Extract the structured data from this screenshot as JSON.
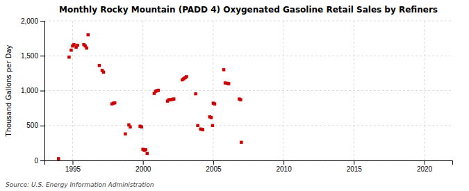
{
  "chart_data": {
    "type": "scatter",
    "title": "Monthly Rocky Mountain (PADD 4) Oxygenated Gasoline Retail Sales by Refiners",
    "y_label": "Thousand Gallons per Day",
    "annotations": [
      "Source: U.S. Energy Information Administration"
    ],
    "color": "#cc0000",
    "marker": "square",
    "grid": true,
    "xlim": [
      1993.0,
      2022.0
    ],
    "ylim": [
      0,
      2000
    ],
    "xticks": [
      1995,
      2000,
      2005,
      2010,
      2015,
      2020
    ],
    "yticks": [
      0,
      500,
      {
        "value": 1000,
        "label": "1,000"
      },
      {
        "value": 1500,
        "label": "1,500"
      },
      {
        "value": 2000,
        "label": "2,000"
      }
    ],
    "x": [
      1994.0,
      1994.75,
      1994.9,
      1995.0,
      1995.1,
      1995.25,
      1995.35,
      1995.8,
      1995.9,
      1996.0,
      1996.1,
      1996.9,
      1997.1,
      1997.2,
      1997.8,
      1997.9,
      1998.0,
      1998.75,
      1999.0,
      1999.1,
      1999.8,
      1999.9,
      2000.0,
      2000.1,
      2000.2,
      2000.3,
      2000.8,
      2000.9,
      2001.0,
      2001.1,
      2001.75,
      2001.85,
      2002.0,
      2002.1,
      2002.2,
      2002.8,
      2002.9,
      2003.0,
      2003.1,
      2003.75,
      2003.9,
      2004.1,
      2004.2,
      2004.25,
      2004.75,
      2004.85,
      2004.95,
      2005.0,
      2005.1,
      2005.75,
      2005.85,
      2006.0,
      2006.1,
      2006.85,
      2006.95,
      2007.0
    ],
    "values": [
      25,
      1480,
      1580,
      1640,
      1660,
      1620,
      1650,
      1660,
      1640,
      1610,
      1800,
      1360,
      1290,
      1265,
      810,
      820,
      825,
      380,
      510,
      480,
      490,
      480,
      160,
      145,
      155,
      100,
      960,
      990,
      1000,
      1005,
      850,
      870,
      870,
      875,
      880,
      1155,
      1170,
      1185,
      1200,
      955,
      500,
      450,
      445,
      440,
      625,
      615,
      500,
      820,
      810,
      1300,
      1110,
      1105,
      1100,
      880,
      870,
      260
    ]
  }
}
